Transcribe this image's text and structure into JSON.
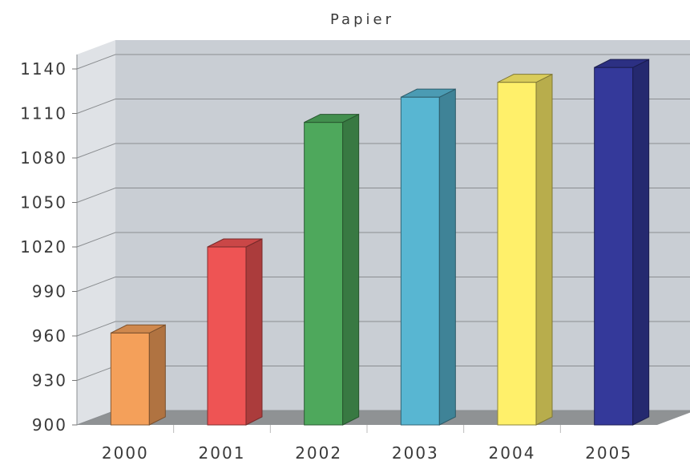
{
  "chart_data": {
    "type": "bar",
    "title": "Papier",
    "categories": [
      "2000",
      "2001",
      "2002",
      "2003",
      "2004",
      "2005"
    ],
    "values": [
      962,
      1020,
      1104,
      1121,
      1131,
      1141
    ],
    "colors": [
      "#f4a05a",
      "#ee5454",
      "#4ea85c",
      "#58b6d2",
      "#fff06a",
      "#34399a"
    ],
    "ylim": [
      900,
      1140
    ],
    "yticks": [
      900,
      930,
      960,
      990,
      1020,
      1050,
      1080,
      1110,
      1140
    ],
    "grid": true,
    "three_d": true
  }
}
